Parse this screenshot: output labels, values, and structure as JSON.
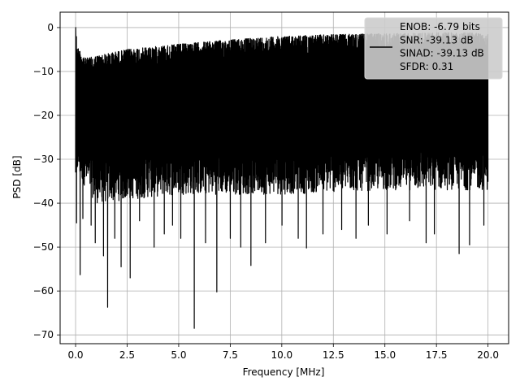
{
  "chart_data": {
    "type": "line",
    "title": "",
    "xlabel": "Frequency [MHz]",
    "ylabel": "PSD [dB]",
    "xlim": [
      -0.75,
      21.0
    ],
    "ylim": [
      -72.0,
      3.5
    ],
    "x_ticks": [
      0.0,
      2.5,
      5.0,
      7.5,
      10.0,
      12.5,
      15.0,
      17.5,
      20.0
    ],
    "x_tick_labels": [
      "0.0",
      "2.5",
      "5.0",
      "7.5",
      "10.0",
      "12.5",
      "15.0",
      "17.5",
      "20.0"
    ],
    "y_ticks": [
      0,
      -10,
      -20,
      -30,
      -40,
      -50,
      -60,
      -70
    ],
    "y_tick_labels": [
      "0",
      "−10",
      "−20",
      "−30",
      "−40",
      "−50",
      "−60",
      "−70"
    ],
    "grid": true,
    "legend_position": "top-right",
    "legend_lines": [
      "ENOB: -6.79 bits",
      "SNR: -39.13 dB",
      "SINAD: -39.13 dB",
      "SFDR: 0.31"
    ],
    "series": [
      {
        "color": "#000000",
        "x_range": [
          0.0,
          20.0
        ],
        "upper_envelope": [
          [
            0.0,
            0.0
          ],
          [
            0.1,
            -4.5
          ],
          [
            0.5,
            -7.0
          ],
          [
            1.5,
            -6.0
          ],
          [
            2.5,
            -5.0
          ],
          [
            5.0,
            -3.8
          ],
          [
            7.5,
            -2.8
          ],
          [
            10.0,
            -2.0
          ],
          [
            12.5,
            -1.6
          ],
          [
            15.0,
            -1.4
          ],
          [
            17.5,
            -1.2
          ],
          [
            20.0,
            -1.2
          ]
        ],
        "lower_envelope": [
          [
            0.0,
            -33.0
          ],
          [
            1.0,
            -40.0
          ],
          [
            5.0,
            -38.0
          ],
          [
            10.0,
            -38.0
          ],
          [
            15.0,
            -37.0
          ],
          [
            20.0,
            -37.0
          ]
        ],
        "deep_nulls": [
          [
            0.05,
            -44.5
          ],
          [
            0.22,
            -56.3
          ],
          [
            0.35,
            -43.5
          ],
          [
            0.75,
            -45.0
          ],
          [
            0.95,
            -49.0
          ],
          [
            1.35,
            -52.0
          ],
          [
            1.55,
            -63.7
          ],
          [
            1.9,
            -48.0
          ],
          [
            2.2,
            -54.5
          ],
          [
            2.65,
            -57.0
          ],
          [
            3.1,
            -44.0
          ],
          [
            3.8,
            -50.0
          ],
          [
            4.3,
            -47.0
          ],
          [
            4.7,
            -45.0
          ],
          [
            5.1,
            -48.0
          ],
          [
            5.75,
            -68.5
          ],
          [
            6.3,
            -49.0
          ],
          [
            6.85,
            -60.2
          ],
          [
            7.5,
            -48.0
          ],
          [
            8.0,
            -50.0
          ],
          [
            8.5,
            -54.2
          ],
          [
            9.2,
            -49.0
          ],
          [
            10.0,
            -45.0
          ],
          [
            10.8,
            -48.0
          ],
          [
            11.2,
            -50.2
          ],
          [
            12.0,
            -47.0
          ],
          [
            12.9,
            -46.0
          ],
          [
            13.6,
            -48.0
          ],
          [
            14.2,
            -45.0
          ],
          [
            15.1,
            -47.0
          ],
          [
            16.2,
            -44.0
          ],
          [
            17.0,
            -49.0
          ],
          [
            17.4,
            -47.0
          ],
          [
            18.6,
            -51.5
          ],
          [
            19.1,
            -49.5
          ],
          [
            19.8,
            -45.0
          ]
        ]
      }
    ]
  }
}
